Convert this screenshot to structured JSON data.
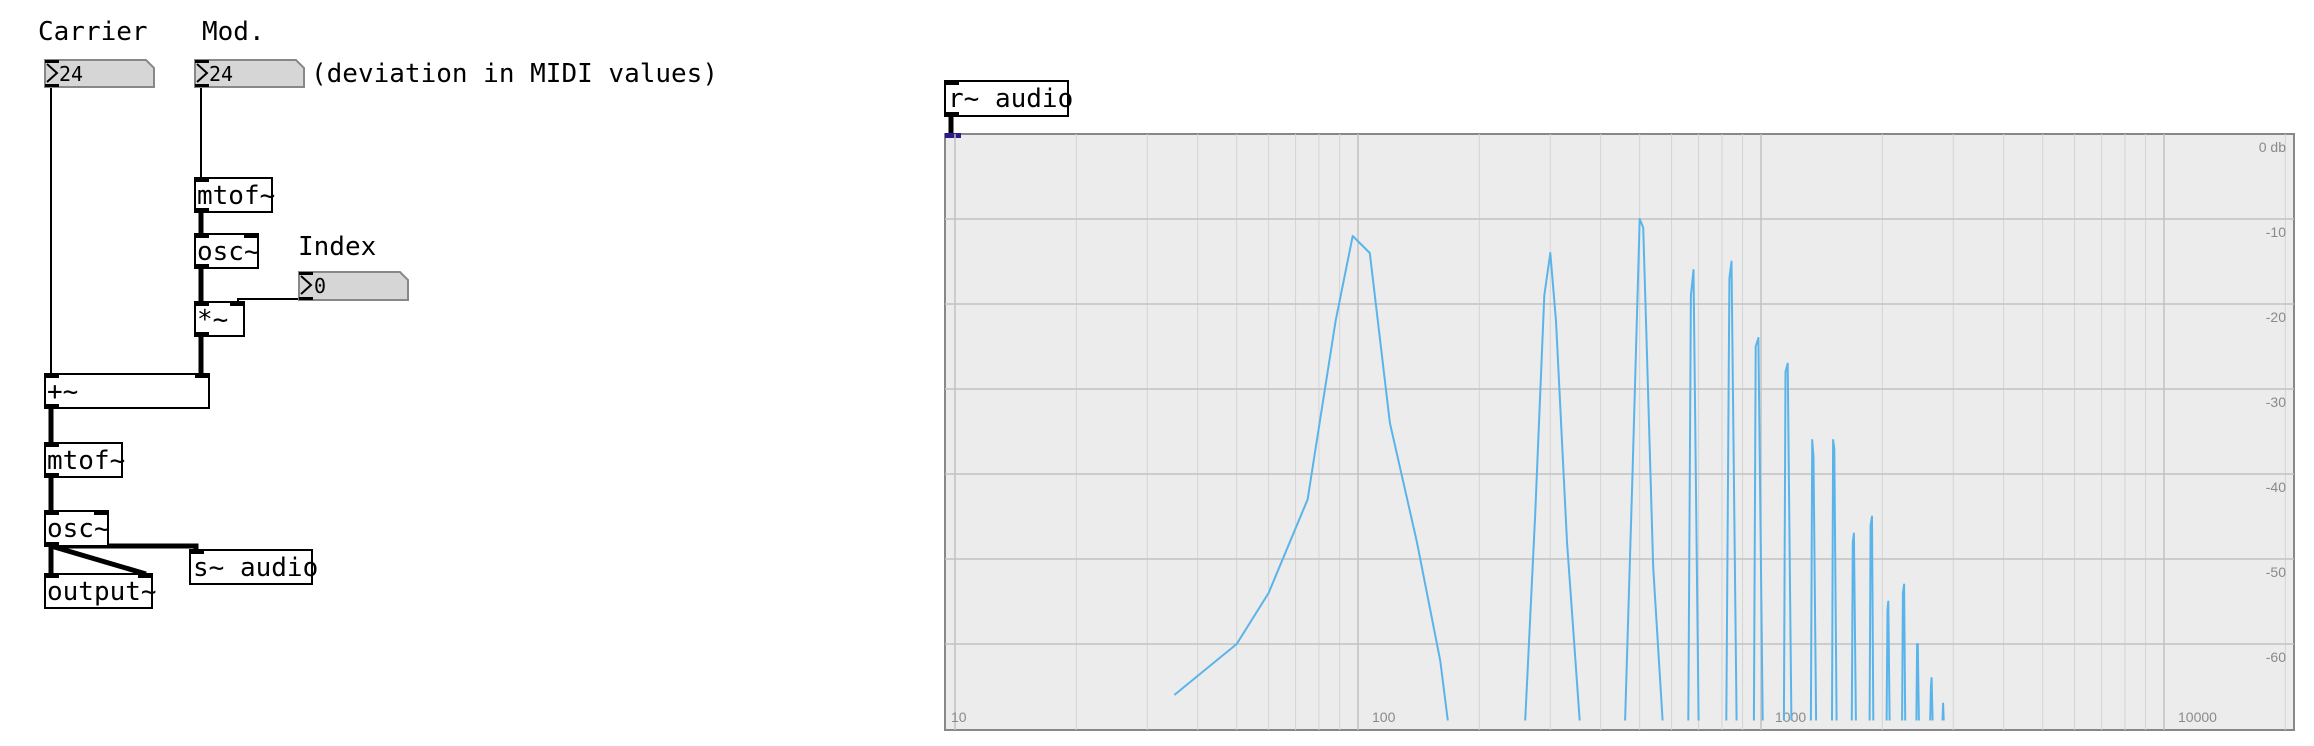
{
  "patch": {
    "comments": {
      "carrier": "Carrier",
      "mod": "Mod.",
      "deviation": "(deviation in MIDI values)",
      "index": "Index"
    },
    "number_boxes": {
      "carrier_value": "24",
      "mod_value": "24",
      "index_value": "0"
    },
    "objects": {
      "mtof_mod": "mtof~",
      "osc_mod": "osc~",
      "mult": "*~",
      "add": "+~",
      "mtof_carrier": "mtof~",
      "osc_carrier": "osc~",
      "send_audio": "s~ audio",
      "output": "output~",
      "receive_audio": "r~ audio"
    }
  },
  "spectrum": {
    "line_color": "#5ab4ea",
    "db_labels": [
      "0 db",
      "-10",
      "-20",
      "-30",
      "-40",
      "-50",
      "-60"
    ],
    "freq_labels": [
      "10",
      "100",
      "1000",
      "10000"
    ]
  },
  "chart_data": {
    "type": "line",
    "title": "",
    "xlabel": "",
    "ylabel": "",
    "x_scale": "log",
    "xlim": [
      10,
      20000
    ],
    "ylim": [
      -69,
      0
    ],
    "grid": true,
    "series": [
      {
        "x": [
          35,
          50,
          60,
          75,
          88,
          97,
          107,
          120,
          140,
          160,
          167
        ],
        "y": [
          -66,
          -60,
          -54,
          -43,
          -22,
          -12,
          -14,
          -34,
          -48,
          -62,
          -69
        ]
      },
      {
        "x": [
          260,
          275,
          290,
          300,
          310,
          330,
          355
        ],
        "y": [
          -69,
          -45,
          -19,
          -14,
          -22,
          -48,
          -69
        ]
      },
      {
        "x": [
          460,
          480,
          500,
          510,
          520,
          540,
          570
        ],
        "y": [
          -69,
          -40,
          -10,
          -11,
          -24,
          -51,
          -69
        ]
      },
      {
        "x": [
          660,
          670,
          680,
          700
        ],
        "y": [
          -69,
          -19,
          -16,
          -69
        ]
      },
      {
        "x": [
          820,
          835,
          845,
          870
        ],
        "y": [
          -69,
          -17,
          -15,
          -69
        ]
      },
      {
        "x": [
          960,
          970,
          985,
          1010
        ],
        "y": [
          -69,
          -25,
          -24,
          -69
        ]
      },
      {
        "x": [
          1140,
          1150,
          1165,
          1190
        ],
        "y": [
          -69,
          -28,
          -27,
          -69
        ]
      },
      {
        "x": [
          1330,
          1340,
          1350,
          1370
        ],
        "y": [
          -69,
          -36,
          -38,
          -69
        ]
      },
      {
        "x": [
          1500,
          1510,
          1520,
          1540
        ],
        "y": [
          -69,
          -36,
          -37,
          -69
        ]
      },
      {
        "x": [
          1680,
          1690,
          1700,
          1720
        ],
        "y": [
          -69,
          -48,
          -47,
          -69
        ]
      },
      {
        "x": [
          1860,
          1870,
          1885,
          1900
        ],
        "y": [
          -69,
          -46,
          -45,
          -69
        ]
      },
      {
        "x": [
          2050,
          2060,
          2070,
          2085
        ],
        "y": [
          -69,
          -56,
          -55,
          -69
        ]
      },
      {
        "x": [
          2240,
          2250,
          2265,
          2280
        ],
        "y": [
          -69,
          -54,
          -53,
          -69
        ]
      },
      {
        "x": [
          2430,
          2440,
          2450,
          2465
        ],
        "y": [
          -69,
          -60,
          -60,
          -69
        ]
      },
      {
        "x": [
          2630,
          2640,
          2650,
          2665
        ],
        "y": [
          -69,
          -65,
          -64,
          -69
        ]
      },
      {
        "x": [
          2820,
          2830,
          2840
        ],
        "y": [
          -69,
          -67,
          -69
        ]
      }
    ]
  }
}
